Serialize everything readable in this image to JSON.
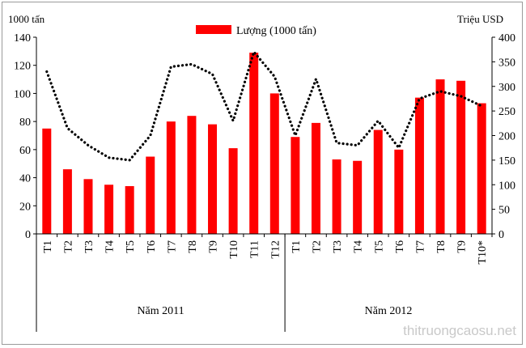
{
  "chart_data": {
    "type": "bar",
    "categories": [
      "T1",
      "T2",
      "T3",
      "T4",
      "T5",
      "T6",
      "T7",
      "T8",
      "T9",
      "T10",
      "T11",
      "T12",
      "T1",
      "T2",
      "T3",
      "T4",
      "T5",
      "T6",
      "T7",
      "T8",
      "T9",
      "T10*"
    ],
    "groups": [
      {
        "label": "Năm 2011",
        "start": 0,
        "end": 11
      },
      {
        "label": "Năm 2012",
        "start": 12,
        "end": 21
      }
    ],
    "series": [
      {
        "name": "Lượng (1000 tấn)",
        "type": "bar",
        "axis": "left",
        "color": "#ff0000",
        "values": [
          75,
          46,
          39,
          35,
          34,
          55,
          80,
          84,
          78,
          61,
          129,
          100,
          69,
          79,
          53,
          52,
          74,
          60,
          97,
          110,
          109,
          93
        ]
      },
      {
        "type": "line",
        "style": "dotted",
        "axis": "right",
        "color": "#000000",
        "values": [
          330,
          215,
          180,
          155,
          150,
          200,
          340,
          345,
          325,
          230,
          370,
          320,
          200,
          315,
          185,
          180,
          230,
          175,
          275,
          290,
          280,
          260
        ]
      }
    ],
    "left_axis": {
      "label": "1000 tấn",
      "ylim": [
        0,
        140
      ],
      "ticks": [
        0,
        20,
        40,
        60,
        80,
        100,
        120,
        140
      ]
    },
    "right_axis": {
      "label": "Triệu USD",
      "ylim": [
        0,
        400
      ],
      "ticks": [
        0,
        50,
        100,
        150,
        200,
        250,
        300,
        350,
        400
      ]
    },
    "legend": {
      "position": "top-center"
    },
    "grid": false
  },
  "watermark": "thitruongcaosu.net"
}
